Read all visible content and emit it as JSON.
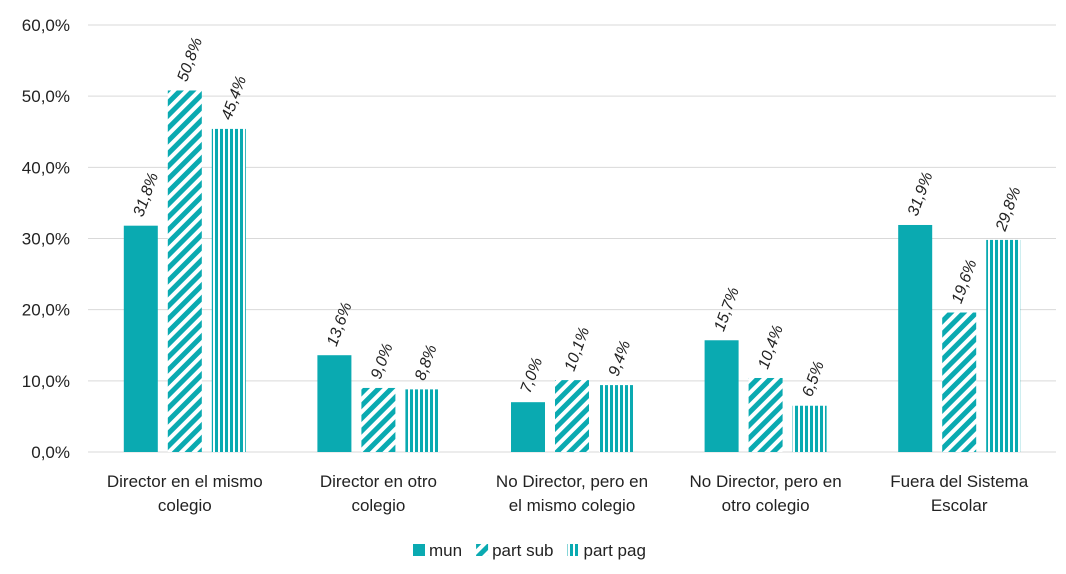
{
  "chart_data": {
    "type": "bar",
    "categories": [
      [
        "Director en el mismo",
        "colegio"
      ],
      [
        "Director en otro",
        "colegio"
      ],
      [
        "No Director, pero en",
        "el mismo colegio"
      ],
      [
        "No Director, pero en",
        "otro colegio"
      ],
      [
        "Fuera del Sistema",
        "Escolar"
      ]
    ],
    "series": [
      {
        "name": "mun",
        "pattern": "solid",
        "values": [
          31.8,
          13.6,
          7.0,
          15.7,
          31.9
        ],
        "labels": [
          "31,8%",
          "13,6%",
          "7,0%",
          "15,7%",
          "31,9%"
        ]
      },
      {
        "name": "part sub",
        "pattern": "diagonal",
        "values": [
          50.8,
          9.0,
          10.1,
          10.4,
          19.6
        ],
        "labels": [
          "50,8%",
          "9,0%",
          "10,1%",
          "10,4%",
          "19,6%"
        ]
      },
      {
        "name": "part pag",
        "pattern": "vertical",
        "values": [
          45.4,
          8.8,
          9.4,
          6.5,
          29.8
        ],
        "labels": [
          "45,4%",
          "8,8%",
          "9,4%",
          "6,5%",
          "29,8%"
        ]
      }
    ],
    "y_ticks": [
      0,
      10,
      20,
      30,
      40,
      50,
      60
    ],
    "y_tick_labels": [
      "0,0%",
      "10,0%",
      "20,0%",
      "30,0%",
      "40,0%",
      "50,0%",
      "60,0%"
    ],
    "ylim": [
      0,
      60
    ],
    "grid": true,
    "legend_position": "bottom",
    "color": "#0aaab1"
  }
}
